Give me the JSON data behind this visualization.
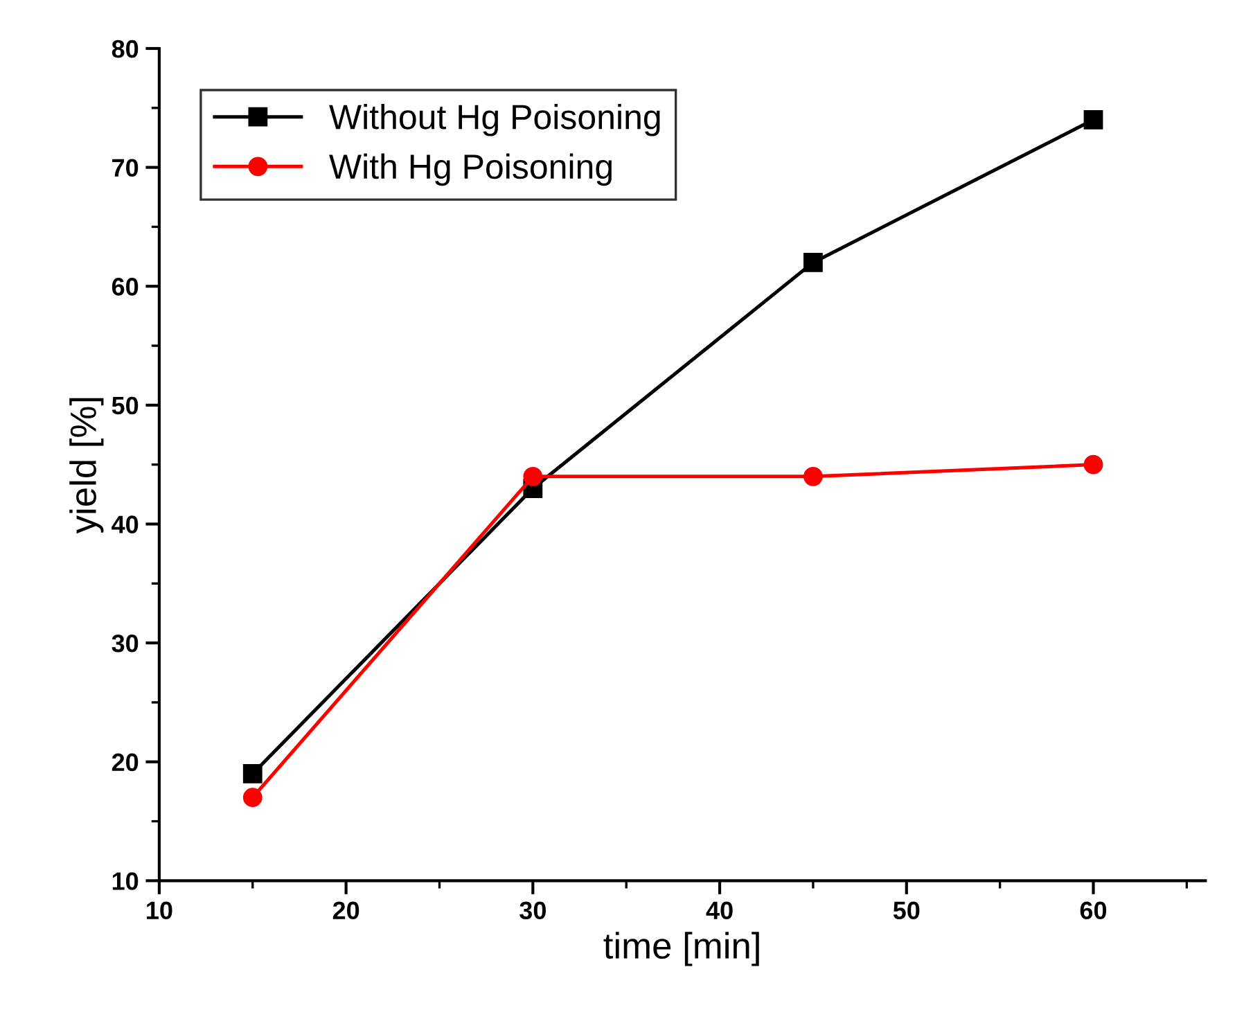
{
  "chart_data": {
    "type": "line",
    "xlabel": "time [min]",
    "ylabel": "yield [%]",
    "x": [
      15,
      30,
      45,
      60
    ],
    "series": [
      {
        "name": "Without Hg Poisoning",
        "color": "#000000",
        "marker": "square",
        "values": [
          19,
          43,
          62,
          74
        ]
      },
      {
        "name": "With Hg Poisoning",
        "color": "#ff0000",
        "marker": "circle",
        "values": [
          17,
          44,
          44,
          45
        ]
      }
    ],
    "xlim": [
      10,
      66
    ],
    "ylim": [
      10,
      80
    ],
    "xticks": [
      10,
      20,
      30,
      40,
      50,
      60
    ],
    "yticks": [
      10,
      20,
      30,
      40,
      50,
      60,
      70,
      80
    ],
    "grid": false,
    "legend": "top left",
    "line_style": "solid"
  }
}
